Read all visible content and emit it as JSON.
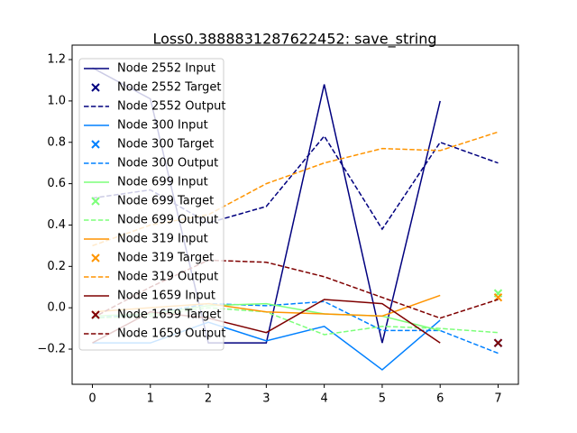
{
  "chart_data": {
    "type": "line",
    "title": "Loss0.3888831287622452: save_string",
    "x": [
      0,
      1,
      2,
      3,
      4,
      5,
      6,
      7
    ],
    "xlim": [
      -0.35,
      7.35
    ],
    "xticks": [
      0,
      1,
      2,
      3,
      4,
      5,
      6,
      7
    ],
    "ylim": [
      -0.37,
      1.27
    ],
    "yticks": [
      {
        "value": -0.2,
        "label": "−0.2"
      },
      {
        "value": 0,
        "label": "0.0"
      },
      0.2,
      0.4,
      0.6,
      0.8,
      {
        "value": 1,
        "label": "1.0"
      },
      1.2
    ],
    "grid": false,
    "legend": "upper left",
    "series": [
      {
        "name": "Node 2552 Input",
        "color": "#00007f",
        "style": "solid",
        "values": [
          1.16,
          1.01,
          -0.17,
          -0.17,
          1.08,
          -0.17,
          1.0,
          null
        ]
      },
      {
        "name": "Node 2552 Target",
        "color": "#00007f",
        "style": "marker",
        "values": [
          null,
          null,
          null,
          null,
          null,
          null,
          null,
          -0.17
        ]
      },
      {
        "name": "Node 2552 Output",
        "color": "#00007f",
        "style": "dashed",
        "values": [
          0.53,
          0.57,
          0.41,
          0.49,
          0.83,
          0.38,
          0.8,
          0.7
        ]
      },
      {
        "name": "Node 300 Input",
        "color": "#0080ff",
        "style": "solid",
        "values": [
          -0.17,
          -0.17,
          -0.07,
          -0.16,
          -0.09,
          -0.3,
          -0.06,
          null
        ]
      },
      {
        "name": "Node 300 Target",
        "color": "#0080ff",
        "style": "marker",
        "values": [
          null,
          null,
          null,
          null,
          null,
          null,
          null,
          -0.17
        ]
      },
      {
        "name": "Node 300 Output",
        "color": "#0080ff",
        "style": "dashed",
        "values": [
          -0.05,
          -0.03,
          0.02,
          0.01,
          0.03,
          -0.11,
          -0.11,
          -0.22
        ]
      },
      {
        "name": "Node 699 Input",
        "color": "#7dff7a",
        "style": "solid",
        "values": [
          -0.04,
          -0.03,
          0.01,
          0.02,
          -0.03,
          -0.04,
          -0.11,
          null
        ]
      },
      {
        "name": "Node 699 Target",
        "color": "#7dff7a",
        "style": "marker",
        "values": [
          null,
          null,
          null,
          null,
          null,
          null,
          null,
          0.07
        ]
      },
      {
        "name": "Node 699 Output",
        "color": "#7dff7a",
        "style": "dashed",
        "values": [
          -0.05,
          -0.04,
          0.0,
          -0.02,
          -0.13,
          -0.09,
          -0.1,
          -0.12
        ]
      },
      {
        "name": "Node 319 Input",
        "color": "#ff9400",
        "style": "solid",
        "values": [
          -0.02,
          0.0,
          0.02,
          -0.02,
          -0.03,
          -0.04,
          0.06,
          null
        ]
      },
      {
        "name": "Node 319 Target",
        "color": "#ff9400",
        "style": "marker",
        "values": [
          null,
          null,
          null,
          null,
          null,
          null,
          null,
          0.05
        ]
      },
      {
        "name": "Node 319 Output",
        "color": "#ff9400",
        "style": "dashed",
        "values": [
          0.3,
          0.4,
          0.45,
          0.6,
          0.7,
          0.77,
          0.76,
          0.85
        ]
      },
      {
        "name": "Node 1659 Input",
        "color": "#7f0000",
        "style": "solid",
        "values": [
          -0.17,
          -0.02,
          -0.05,
          -0.12,
          0.04,
          0.02,
          -0.17,
          null
        ]
      },
      {
        "name": "Node 1659 Target",
        "color": "#7f0000",
        "style": "marker",
        "values": [
          null,
          null,
          null,
          null,
          null,
          null,
          null,
          -0.17
        ]
      },
      {
        "name": "Node 1659 Output",
        "color": "#7f0000",
        "style": "dashed",
        "values": [
          -0.05,
          0.1,
          0.23,
          0.22,
          0.15,
          0.05,
          -0.05,
          0.04
        ]
      }
    ]
  }
}
